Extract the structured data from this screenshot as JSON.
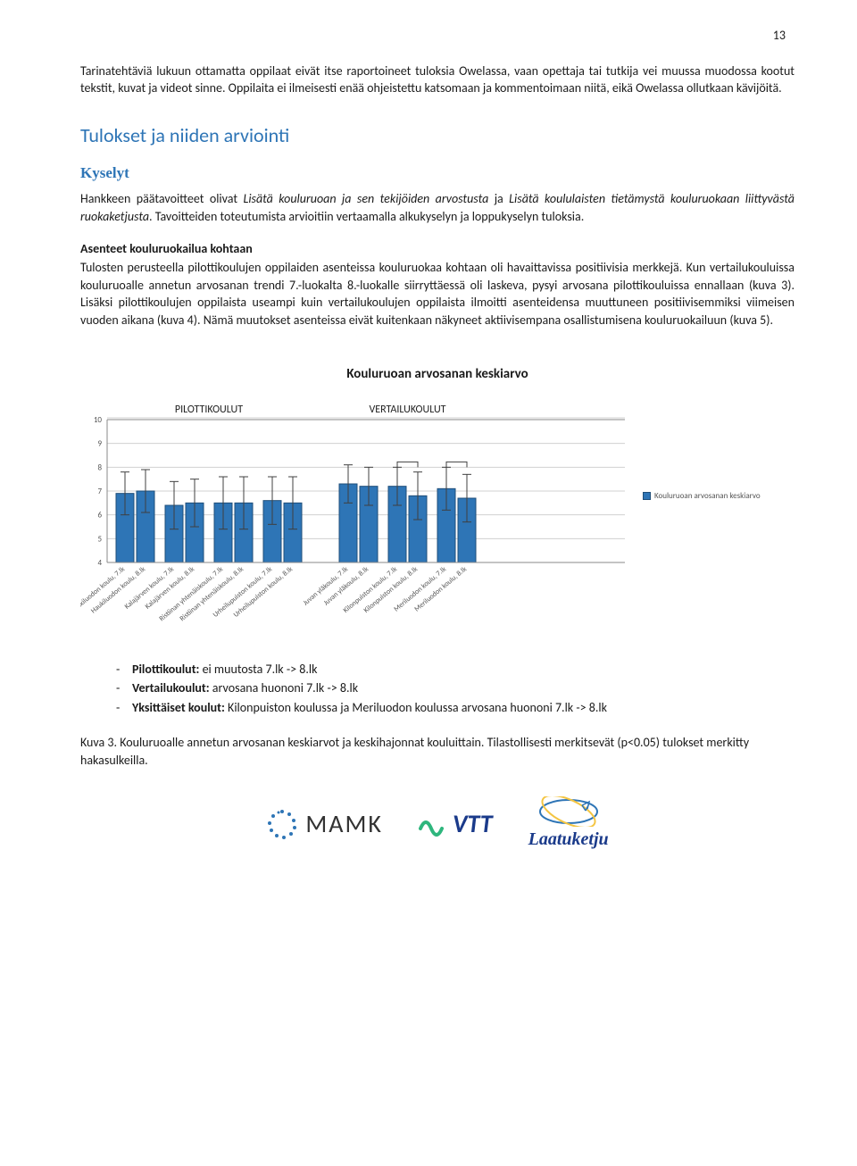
{
  "page_number": "13",
  "para1": "Tarinatehtäviä lukuun ottamatta oppilaat eivät itse raportoineet tuloksia Owelassa, vaan opettaja tai tutkija vei muussa muodossa kootut tekstit, kuvat ja videot sinne. Oppilaita ei ilmeisesti enää ohjeistettu katsomaan ja kommentoimaan niitä, eikä Owelassa ollutkaan kävijöitä.",
  "heading_results": "Tulokset ja niiden arviointi",
  "heading_surveys": "Kyselyt",
  "para2_a": "Hankkeen päätavoitteet olivat ",
  "para2_i1": "Lisätä kouluruoan ja sen tekijöiden arvostusta",
  "para2_b": " ja ",
  "para2_i2": "Lisätä koululaisten tietämystä kouluruokaan liittyvästä ruokaketjusta",
  "para2_c": ". Tavoitteiden toteutumista arvioitiin vertaamalla alkukyselyn ja loppukyselyn tuloksia.",
  "subheading_attitudes": "Asenteet kouluruokailua kohtaan",
  "para3": "Tulosten perusteella pilottikoulujen oppilaiden asenteissa kouluruokaa kohtaan oli havaittavissa positiivisia merkkejä. Kun vertailukouluissa kouluruoalle annetun arvosanan trendi 7.-luokalta 8.-luokalle siirryttäessä oli laskeva, pysyi arvosana pilottikouluissa ennallaan (kuva 3). Lisäksi pilottikoulujen oppilaista useampi kuin vertailukoulujen oppilaista ilmoitti asenteidensa muuttuneen positiivisemmiksi viimeisen vuoden aikana (kuva 4). Nämä muutokset asenteissa eivät kuitenkaan näkyneet aktiivisempana osallistumisena kouluruokailuun (kuva 5).",
  "chart": {
    "title": "Kouluruoan arvosanan keskiarvo",
    "group_labels": [
      "PILOTTIKOULUT",
      "VERTAILUKOULUT"
    ],
    "legend_label": "Kouluruoan arvosanan keskiarvo",
    "y_min": 4,
    "y_max": 10,
    "y_step": 1,
    "bar_color": "#2e75b6",
    "bar_border": "#1f4e79",
    "grid_color": "#d0d0d0",
    "axis_color": "#888888",
    "err_color": "#404040",
    "bg": "#ffffff",
    "font_size_axis": 9,
    "font_size_group": 12,
    "bars": [
      {
        "label": "Haukiluodon koulu, 7.lk",
        "value": 6.9,
        "err": 0.9,
        "group": 0
      },
      {
        "label": "Haukiluodon koulu, 8.lk",
        "value": 7.0,
        "err": 0.9,
        "group": 0
      },
      {
        "label": "Kalajärven koulu, 7.lk",
        "value": 6.4,
        "err": 1.0,
        "group": 0
      },
      {
        "label": "Kalajärven koulu, 8.lk",
        "value": 6.5,
        "err": 1.0,
        "group": 0
      },
      {
        "label": "Ristiinan yhtenäiskoulu, 7.lk",
        "value": 6.5,
        "err": 1.1,
        "group": 0
      },
      {
        "label": "Ristiinan yhtenäiskoulu, 8.lk",
        "value": 6.5,
        "err": 1.1,
        "group": 0
      },
      {
        "label": "Urheilupuiston koulu, 7.lk",
        "value": 6.6,
        "err": 1.0,
        "group": 0
      },
      {
        "label": "Urheilupuiston koulu, 8.lk",
        "value": 6.5,
        "err": 1.1,
        "group": 0
      },
      {
        "label": "Juvan yläkoulu, 7.lk",
        "value": 7.3,
        "err": 0.8,
        "group": 1
      },
      {
        "label": "Juvan yläkoulu, 8.lk",
        "value": 7.2,
        "err": 0.8,
        "group": 1
      },
      {
        "label": "Kilonpuiston koulu, 7.lk",
        "value": 7.2,
        "err": 0.8,
        "group": 1
      },
      {
        "label": "Kilonpuiston koulu, 8.lk",
        "value": 6.8,
        "err": 1.0,
        "group": 1
      },
      {
        "label": "Meriluodon koulu, 7.lk",
        "value": 7.1,
        "err": 0.9,
        "group": 1
      },
      {
        "label": "Meriluodon koulu, 8.lk",
        "value": 6.7,
        "err": 1.0,
        "group": 1
      }
    ],
    "sig_pairs": [
      [
        10,
        11
      ],
      [
        12,
        13
      ]
    ]
  },
  "bullets": [
    {
      "b": "Pilottikoulut:",
      "t": " ei muutosta 7.lk -> 8.lk"
    },
    {
      "b": "Vertailukoulut:",
      "t": " arvosana huononi 7.lk -> 8.lk"
    },
    {
      "b": "Yksittäiset koulut:",
      "t": " Kilonpuiston koulussa ja Meriluodon koulussa arvosana huononi 7.lk -> 8.lk"
    }
  ],
  "caption": "Kuva 3. Kouluruoalle annetun arvosanan keskiarvot ja keskihajonnat kouluittain. Tilastollisesti merkitsevät (p<0.05) tulokset merkitty hakasulkeilla.",
  "logos": {
    "mamk": "MAMK",
    "vtt": "VTT",
    "laatu": "Laatuketju"
  }
}
